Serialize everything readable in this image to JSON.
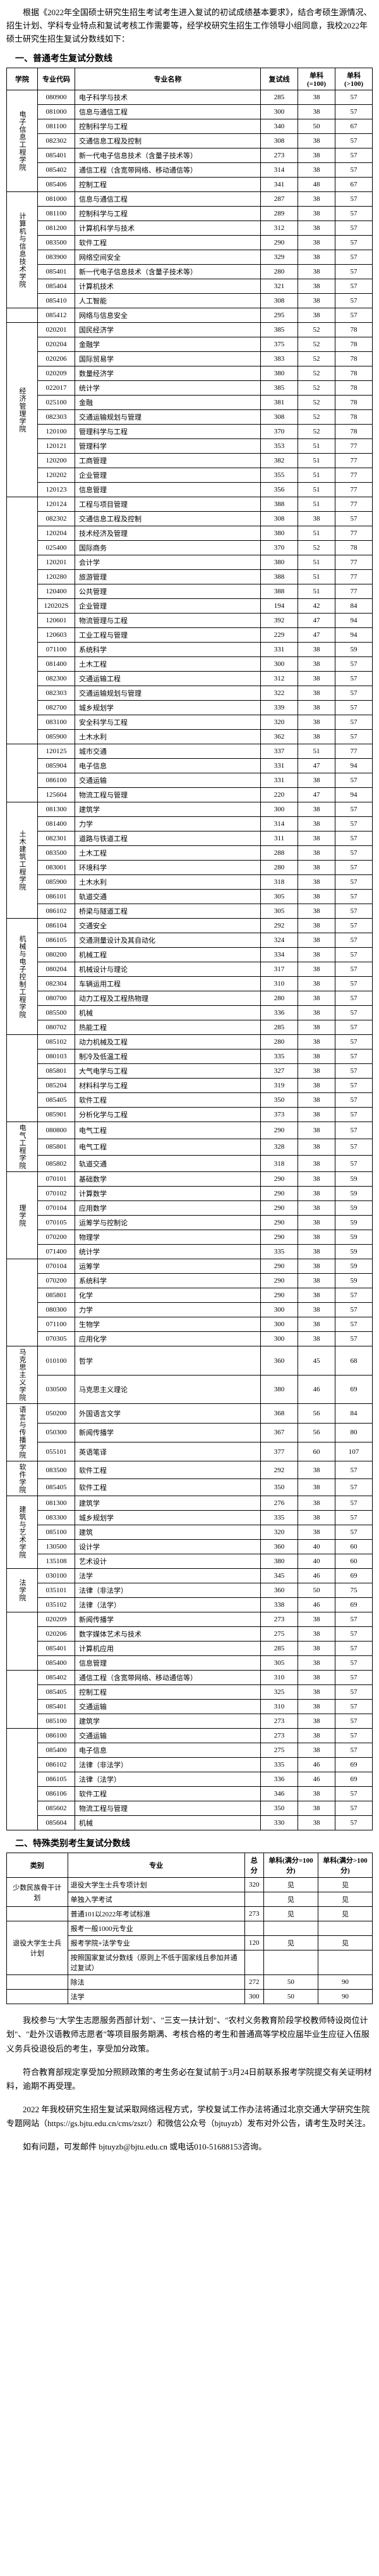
{
  "intro": "根据《2022年全国硕士研究生招生考试考生进入复试的初试成绩基本要求》，结合考硕生源情况、招生计划、学科专业特点和复试考核工作需要等，经学校研究生招生工作领导小组同意，我校2022年硕士研究生招生复试分数线如下：",
  "section1_title": "一、普通考生复试分数线",
  "section2_title": "二、特殊类别考生复试分数线",
  "header1": {
    "school": "学院",
    "code": "专业代码",
    "name": "专业名称",
    "total": "复试线",
    "single1": "单科(=100)",
    "single2": "单科(>100)"
  },
  "header2": {
    "category": "类别",
    "major": "专业",
    "total": "总分",
    "single1": "单科(满分=100分)",
    "single2": "单科(满分>100分)"
  },
  "rows1": [
    {
      "school": "电子信息工程学院",
      "schoolRowspan": 7,
      "code": "080900",
      "name": "电子科学与技术",
      "t": "285",
      "s1": "38",
      "s2": "57"
    },
    {
      "code": "081000",
      "name": "信息与通信工程",
      "t": "300",
      "s1": "38",
      "s2": "57"
    },
    {
      "code": "081100",
      "name": "控制科学与工程",
      "t": "340",
      "s1": "50",
      "s2": "67"
    },
    {
      "code": "082302",
      "name": "交通信息工程及控制",
      "t": "308",
      "s1": "38",
      "s2": "57"
    },
    {
      "code": "085401",
      "name": "新一代电子信息技术（含量子技术等）",
      "t": "273",
      "s1": "38",
      "s2": "57"
    },
    {
      "code": "085402",
      "name": "通信工程（含宽带网络、移动通信等）",
      "t": "314",
      "s1": "38",
      "s2": "57"
    },
    {
      "code": "085406",
      "name": "控制工程",
      "t": "341",
      "s1": "48",
      "s2": "67"
    },
    {
      "school": "计算机与信息技术学院",
      "schoolRowspan": 8,
      "code": "081000",
      "name": "信息与通信工程",
      "t": "287",
      "s1": "38",
      "s2": "57"
    },
    {
      "code": "081100",
      "name": "控制科学与工程",
      "t": "289",
      "s1": "38",
      "s2": "57"
    },
    {
      "code": "081200",
      "name": "计算机科学与技术",
      "t": "312",
      "s1": "38",
      "s2": "57"
    },
    {
      "code": "083500",
      "name": "软件工程",
      "t": "290",
      "s1": "38",
      "s2": "57"
    },
    {
      "code": "083900",
      "name": "网络空间安全",
      "t": "329",
      "s1": "38",
      "s2": "57"
    },
    {
      "code": "085401",
      "name": "新一代电子信息技术（含量子技术等）",
      "t": "280",
      "s1": "38",
      "s2": "57"
    },
    {
      "code": "085404",
      "name": "计算机技术",
      "t": "321",
      "s1": "38",
      "s2": "57"
    },
    {
      "code": "085410",
      "name": "人工智能",
      "t": "308",
      "s1": "38",
      "s2": "57"
    },
    {
      "code": "085412",
      "name": "网络与信息安全",
      "school": "",
      "t": "295",
      "s1": "38",
      "s2": "57"
    },
    {
      "school": "经济管理学院",
      "schoolRowspan": 12,
      "code": "020201",
      "name": "国民经济学",
      "t": "385",
      "s1": "52",
      "s2": "78"
    },
    {
      "code": "020204",
      "name": "金融学",
      "t": "375",
      "s1": "52",
      "s2": "78"
    },
    {
      "code": "020206",
      "name": "国际贸易学",
      "t": "383",
      "s1": "52",
      "s2": "78"
    },
    {
      "code": "020209",
      "name": "数量经济学",
      "t": "380",
      "s1": "52",
      "s2": "78"
    },
    {
      "code": "022017",
      "name": "统计学",
      "t": "385",
      "s1": "52",
      "s2": "78"
    },
    {
      "code": "025100",
      "name": "金融",
      "t": "381",
      "s1": "52",
      "s2": "78"
    },
    {
      "code": "082303",
      "name": "交通运输规划与管理",
      "t": "308",
      "s1": "52",
      "s2": "78"
    },
    {
      "code": "120100",
      "name": "管理科学与工程",
      "t": "370",
      "s1": "52",
      "s2": "78"
    },
    {
      "code": "120121",
      "name": "管理科学",
      "t": "353",
      "s1": "51",
      "s2": "77"
    },
    {
      "code": "120200",
      "name": "工商管理",
      "t": "382",
      "s1": "51",
      "s2": "77"
    },
    {
      "code": "120202",
      "name": "企业管理",
      "t": "355",
      "s1": "51",
      "s2": "77"
    },
    {
      "code": "120123",
      "name": "信息管理",
      "t": "356",
      "s1": "51",
      "s2": "77"
    },
    {
      "school": "",
      "schoolRowspan": 17,
      "code": "120124",
      "name": "工程与项目管理",
      "t": "388",
      "s1": "51",
      "s2": "77"
    },
    {
      "code": "082302",
      "name": "交通信息工程及控制",
      "t": "308",
      "s1": "38",
      "s2": "57"
    },
    {
      "code": "120204",
      "name": "技术经济及管理",
      "t": "380",
      "s1": "51",
      "s2": "77"
    },
    {
      "code": "025400",
      "name": "国际商务",
      "t": "370",
      "s1": "52",
      "s2": "78"
    },
    {
      "code": "120201",
      "name": "会计学",
      "t": "380",
      "s1": "51",
      "s2": "77"
    },
    {
      "code": "120280",
      "name": "旅游管理",
      "t": "388",
      "s1": "51",
      "s2": "77"
    },
    {
      "code": "120400",
      "name": "公共管理",
      "t": "388",
      "s1": "51",
      "s2": "77"
    },
    {
      "code": "120202S",
      "name": "企业管理",
      "t": "194",
      "s1": "42",
      "s2": "84"
    },
    {
      "code": "120601",
      "name": "物流管理与工程",
      "t": "392",
      "s1": "47",
      "s2": "94"
    },
    {
      "code": "120603",
      "name": "工业工程与管理",
      "t": "229",
      "s1": "47",
      "s2": "94"
    },
    {
      "code": "071100",
      "name": "系统科学",
      "t": "331",
      "s1": "38",
      "s2": "59"
    },
    {
      "code": "081400",
      "name": "土木工程",
      "t": "300",
      "s1": "38",
      "s2": "57"
    },
    {
      "code": "082300",
      "name": "交通运输工程",
      "t": "312",
      "s1": "38",
      "s2": "57"
    },
    {
      "code": "082303",
      "name": "交通运输规划与管理",
      "t": "322",
      "s1": "38",
      "s2": "57"
    },
    {
      "code": "082700",
      "name": "城乡规划学",
      "t": "339",
      "s1": "38",
      "s2": "57"
    },
    {
      "code": "083100",
      "name": "安全科学与工程",
      "t": "320",
      "s1": "38",
      "s2": "57"
    },
    {
      "code": "085900",
      "name": "土木水利",
      "t": "362",
      "s1": "38",
      "s2": "57"
    },
    {
      "school": "",
      "schoolRowspan": 4,
      "code": "120125",
      "name": "城市交通",
      "t": "337",
      "s1": "51",
      "s2": "77"
    },
    {
      "code": "085904",
      "name": "电子信息",
      "t": "331",
      "s1": "47",
      "s2": "94"
    },
    {
      "code": "086100",
      "name": "交通运输",
      "t": "331",
      "s1": "38",
      "s2": "57"
    },
    {
      "code": "125604",
      "name": "物流工程与管理",
      "t": "220",
      "s1": "47",
      "s2": "94"
    },
    {
      "school": "土木建筑工程学院",
      "schoolRowspan": 8,
      "code": "081300",
      "name": "建筑学",
      "t": "300",
      "s1": "38",
      "s2": "57"
    },
    {
      "code": "081400",
      "name": "力学",
      "t": "314",
      "s1": "38",
      "s2": "57"
    },
    {
      "code": "082301",
      "name": "道路与铁道工程",
      "t": "311",
      "s1": "38",
      "s2": "57"
    },
    {
      "code": "083500",
      "name": "土木工程",
      "t": "288",
      "s1": "38",
      "s2": "57"
    },
    {
      "code": "083001",
      "name": "环境科学",
      "t": "280",
      "s1": "38",
      "s2": "57"
    },
    {
      "code": "085900",
      "name": "土木水利",
      "t": "318",
      "s1": "38",
      "s2": "57"
    },
    {
      "code": "086101",
      "name": "轨道交通",
      "t": "305",
      "s1": "38",
      "s2": "57"
    },
    {
      "code": "086102",
      "name": "桥梁与隧道工程",
      "t": "305",
      "s1": "38",
      "s2": "57"
    },
    {
      "school": "机械与电子控制工程学院",
      "schoolRowspan": 8,
      "code": "086104",
      "name": "交通安全",
      "t": "292",
      "s1": "38",
      "s2": "57"
    },
    {
      "code": "086105",
      "name": "交通测量设计及其自动化",
      "t": "324",
      "s1": "38",
      "s2": "57"
    },
    {
      "code": "080200",
      "name": "机械工程",
      "t": "334",
      "s1": "38",
      "s2": "57"
    },
    {
      "code": "080204",
      "name": "机械设计与理论",
      "t": "317",
      "s1": "38",
      "s2": "57"
    },
    {
      "code": "082304",
      "name": "车辆运用工程",
      "t": "310",
      "s1": "38",
      "s2": "57"
    },
    {
      "code": "080700",
      "name": "动力工程及工程热物理",
      "t": "280",
      "s1": "38",
      "s2": "57"
    },
    {
      "code": "085500",
      "name": "机械",
      "t": "336",
      "s1": "38",
      "s2": "57"
    },
    {
      "code": "080702",
      "name": "热能工程",
      "t": "285",
      "s1": "38",
      "s2": "57"
    },
    {
      "school": "",
      "schoolRowspan": 6,
      "code": "085102",
      "name": "动力机械及工程",
      "t": "280",
      "s1": "38",
      "s2": "57"
    },
    {
      "code": "080103",
      "name": "制冷及低温工程",
      "t": "335",
      "s1": "38",
      "s2": "57"
    },
    {
      "code": "085801",
      "name": "大气电学与工程",
      "t": "327",
      "s1": "38",
      "s2": "57"
    },
    {
      "code": "085204",
      "name": "材料科学与工程",
      "t": "319",
      "s1": "38",
      "s2": "57"
    },
    {
      "code": "085405",
      "name": "软件工程",
      "t": "350",
      "s1": "38",
      "s2": "57"
    },
    {
      "code": "085901",
      "name": "分析化学与工程",
      "t": "373",
      "s1": "38",
      "s2": "57"
    },
    {
      "school": "电气工程学院",
      "schoolRowspan": 3,
      "code": "080800",
      "name": "电气工程",
      "t": "290",
      "s1": "38",
      "s2": "57"
    },
    {
      "code": "085801",
      "name": "电气工程",
      "t": "328",
      "s1": "38",
      "s2": "57"
    },
    {
      "code": "085802",
      "name": "轨道交通",
      "t": "318",
      "s1": "38",
      "s2": "57"
    },
    {
      "school": "理学院",
      "schoolRowspan": 6,
      "code": "070101",
      "name": "基础数学",
      "t": "290",
      "s1": "38",
      "s2": "59"
    },
    {
      "code": "070102",
      "name": "计算数学",
      "t": "290",
      "s1": "38",
      "s2": "59"
    },
    {
      "code": "070104",
      "name": "应用数学",
      "t": "290",
      "s1": "38",
      "s2": "59"
    },
    {
      "code": "070105",
      "name": "运筹学与控制论",
      "t": "290",
      "s1": "38",
      "s2": "59"
    },
    {
      "code": "070200",
      "name": "物理学",
      "t": "290",
      "s1": "38",
      "s2": "59"
    },
    {
      "code": "071400",
      "name": "统计学",
      "t": "335",
      "s1": "38",
      "s2": "59"
    },
    {
      "school": "",
      "schoolRowspan": 6,
      "code": "070104",
      "name": "运筹学",
      "t": "290",
      "s1": "38",
      "s2": "59"
    },
    {
      "code": "070200",
      "name": "系统科学",
      "t": "290",
      "s1": "38",
      "s2": "59"
    },
    {
      "code": "085801",
      "name": "化学",
      "t": "290",
      "s1": "38",
      "s2": "57"
    },
    {
      "code": "080300",
      "name": "力学",
      "t": "300",
      "s1": "38",
      "s2": "57"
    },
    {
      "code": "071100",
      "name": "生物学",
      "t": "300",
      "s1": "38",
      "s2": "57"
    },
    {
      "code": "070305",
      "name": "应用化学",
      "t": "300",
      "s1": "38",
      "s2": "57"
    },
    {
      "school": "马克思主义学院",
      "schoolRowspan": 2,
      "code": "010100",
      "name": "哲学",
      "t": "360",
      "s1": "45",
      "s2": "68"
    },
    {
      "code": "030500",
      "name": "马克思主义理论",
      "t": "380",
      "s1": "46",
      "s2": "69"
    },
    {
      "school": "语言与传播学院",
      "schoolRowspan": 3,
      "code": "050200",
      "name": "外国语言文学",
      "t": "368",
      "s1": "56",
      "s2": "84"
    },
    {
      "code": "050300",
      "name": "新闻传播学",
      "t": "367",
      "s1": "56",
      "s2": "80"
    },
    {
      "code": "055101",
      "name": "英语笔译",
      "t": "377",
      "s1": "60",
      "s2": "107"
    },
    {
      "school": "软件学院",
      "schoolRowspan": 2,
      "code": "083500",
      "name": "软件工程",
      "t": "292",
      "s1": "38",
      "s2": "57"
    },
    {
      "code": "085405",
      "name": "软件工程",
      "t": "350",
      "s1": "38",
      "s2": "57"
    },
    {
      "school": "建筑与艺术学院",
      "schoolRowspan": 5,
      "code": "081300",
      "name": "建筑学",
      "t": "276",
      "s1": "38",
      "s2": "57"
    },
    {
      "code": "083300",
      "name": "城乡规划学",
      "t": "335",
      "s1": "38",
      "s2": "57"
    },
    {
      "code": "085100",
      "name": "建筑",
      "t": "320",
      "s1": "38",
      "s2": "57"
    },
    {
      "code": "130500",
      "name": "设计学",
      "t": "360",
      "s1": "40",
      "s2": "60"
    },
    {
      "code": "135108",
      "name": "艺术设计",
      "t": "380",
      "s1": "40",
      "s2": "60"
    },
    {
      "school": "法学院",
      "schoolRowspan": 3,
      "code": "030100",
      "name": "法学",
      "t": "345",
      "s1": "46",
      "s2": "69"
    },
    {
      "code": "035101",
      "name": "法律（非法学）",
      "t": "360",
      "s1": "50",
      "s2": "75"
    },
    {
      "code": "035102",
      "name": "法律（法学）",
      "t": "338",
      "s1": "46",
      "s2": "69"
    },
    {
      "school": "",
      "schoolRowspan": 4,
      "code": "020209",
      "name": "新闻传播学",
      "t": "273",
      "s1": "38",
      "s2": "57"
    },
    {
      "code": "020206",
      "name": "数字媒体艺术与技术",
      "t": "275",
      "s1": "38",
      "s2": "57"
    },
    {
      "code": "085401",
      "name": "计算机应用",
      "t": "285",
      "s1": "38",
      "s2": "57"
    },
    {
      "code": "085400",
      "name": "信息管理",
      "t": "305",
      "s1": "38",
      "s2": "57"
    },
    {
      "school": "",
      "schoolRowspan": 4,
      "code": "085402",
      "name": "通信工程（含宽带网络、移动通信等）",
      "t": "310",
      "s1": "38",
      "s2": "57"
    },
    {
      "code": "085405",
      "name": "控制工程",
      "t": "325",
      "s1": "38",
      "s2": "57"
    },
    {
      "code": "085401",
      "name": "交通运输",
      "t": "310",
      "s1": "38",
      "s2": "57"
    },
    {
      "code": "085100",
      "name": "建筑学",
      "t": "273",
      "s1": "38",
      "s2": "57"
    },
    {
      "school": "",
      "schoolRowspan": 7,
      "code": "086100",
      "name": "交通运输",
      "t": "273",
      "s1": "38",
      "s2": "57"
    },
    {
      "code": "085400",
      "name": "电子信息",
      "t": "275",
      "s1": "38",
      "s2": "57"
    },
    {
      "code": "086102",
      "name": "法律（非法学）",
      "t": "335",
      "s1": "46",
      "s2": "69"
    },
    {
      "code": "086105",
      "name": "法律（法学）",
      "t": "336",
      "s1": "46",
      "s2": "69"
    },
    {
      "code": "086106",
      "name": "软件工程",
      "t": "346",
      "s1": "38",
      "s2": "57"
    },
    {
      "code": "085602",
      "name": "物流工程与管理",
      "t": "350",
      "s1": "38",
      "s2": "57"
    },
    {
      "code": "085604",
      "name": "机械",
      "t": "330",
      "s1": "38",
      "s2": "57"
    }
  ],
  "rows2": [
    {
      "cat": "少数民族骨干计划",
      "catRowspan": 2,
      "major": "退役大学生士兵专项计划",
      "t": "320",
      "s1": "见",
      "s2": "见"
    },
    {
      "major": "单独入学考试",
      "t": "",
      "s1": "见",
      "s2": "见"
    },
    {
      "cat": "",
      "catRowspan": 1,
      "major": "普通101以2022年考试标准",
      "t": "273",
      "s1": "见",
      "s2": "见"
    },
    {
      "cat": "退役大学生士兵计划",
      "catRowspan": 3,
      "major": "报考一般1000元专业",
      "t": "",
      "s1": "",
      "s2": ""
    },
    {
      "major": "报考学院+法学专业",
      "t": "120",
      "s1": "见",
      "s2": "见"
    },
    {
      "major": "按照国家复试分数线（原则上不低于国家线且参加并通过复试）",
      "t": "",
      "s1": "",
      "s2": ""
    },
    {
      "cat": "",
      "catRowspan": 1,
      "major": "除法",
      "t": "272",
      "s1": "50",
      "s2": "90"
    },
    {
      "cat": "",
      "catRowspan": 1,
      "major": "法学",
      "t": "300",
      "s1": "50",
      "s2": "90"
    }
  ],
  "footer": [
    "我校参与\"大学生志愿服务西部计划\"、\"三支一扶计划\"、\"农村义务教育阶段学校教师特设岗位计划\"、\"赴外汉语教师志愿者\"等项目服务期满、考核合格的考生和普通高等学校应届毕业生应征入伍服义务兵役退役后的考生，享受加分政策。",
    "符合教育部规定享受加分照顾政策的考生务必在复试前于3月24日前联系报考学院提交有关证明材料，逾期不再受理。",
    "2022 年我校研究生招生复试采取网络远程方式，学校复试工作办法将通过北京交通大学研究生院专题网站（https://gs.bjtu.edu.cn/cms/zszt/）和微信公众号（bjtuyzb）发布对外公告，请考生及时关注。",
    "如有问题，可发邮件 bjtuyzb@bjtu.edu.cn 或电话010-51688153咨询。"
  ]
}
